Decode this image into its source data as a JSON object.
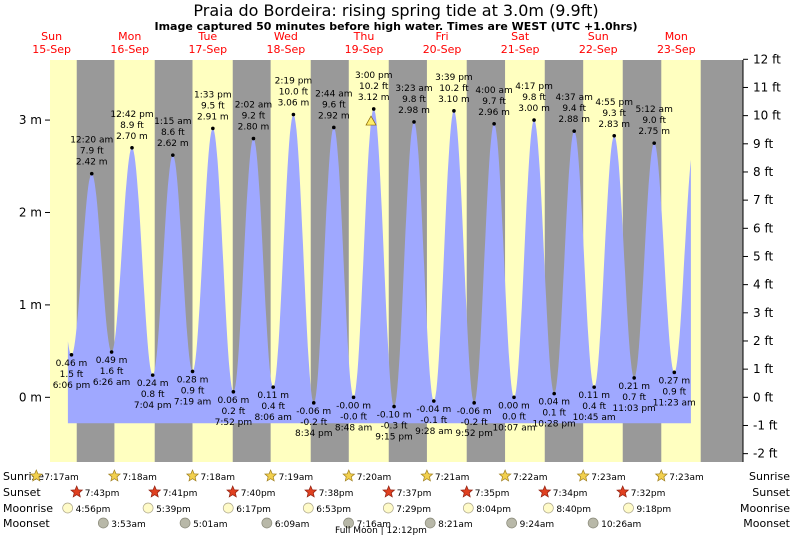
{
  "title": "Praia do Bordeira: rising  spring tide at 3.0m (9.9ft)",
  "subtitle": "Image captured 50 minutes before high water. Times are WEST (UTC +1.0hrs)",
  "footer": "Full Moon | 12:12pm",
  "colors": {
    "water": "#9fa8ff",
    "day": "#ffffc0",
    "night": "#999999",
    "day_label": "#ff0000"
  },
  "chart_data": {
    "type": "area",
    "title": "Praia do Bordeira: rising  spring tide at 3.0m (9.9ft)",
    "ylabel_left_unit": "m",
    "ylabel_right_unit": "ft",
    "ylim_m": [
      -0.7,
      3.65
    ],
    "left_ticks": [
      "0 m",
      "1 m",
      "2 m",
      "3 m"
    ],
    "left_tick_values": [
      0,
      1,
      2,
      3
    ],
    "right_ticks": [
      "-2 ft",
      "-1 ft",
      "0 ft",
      "1 ft",
      "2 ft",
      "3 ft",
      "4 ft",
      "5 ft",
      "6 ft",
      "7 ft",
      "8 ft",
      "9 ft",
      "10 ft",
      "11 ft",
      "12 ft"
    ],
    "right_tick_values": [
      -2,
      -1,
      0,
      1,
      2,
      3,
      4,
      5,
      6,
      7,
      8,
      9,
      10,
      11,
      12
    ],
    "day_labels": [
      {
        "day": "Sun",
        "date": "15-Sep"
      },
      {
        "day": "Mon",
        "date": "16-Sep"
      },
      {
        "day": "Tue",
        "date": "17-Sep"
      },
      {
        "day": "Wed",
        "date": "18-Sep"
      },
      {
        "day": "Thu",
        "date": "19-Sep"
      },
      {
        "day": "Fri",
        "date": "20-Sep"
      },
      {
        "day": "Sat",
        "date": "21-Sep"
      },
      {
        "day": "Sun",
        "date": "22-Sep"
      },
      {
        "day": "Mon",
        "date": "23-Sep"
      }
    ],
    "x_range_hours": [
      11.5,
      224.5
    ],
    "x_range_note_hours_from": "15-Sep 00:00",
    "daylight": [
      [
        "15-Sep 07:17",
        "15-Sep 19:43"
      ],
      [
        "16-Sep 07:18",
        "16-Sep 19:41"
      ],
      [
        "17-Sep 07:18",
        "17-Sep 19:40"
      ],
      [
        "18-Sep 07:19",
        "18-Sep 19:38"
      ],
      [
        "19-Sep 07:20",
        "19-Sep 19:37"
      ],
      [
        "20-Sep 07:21",
        "20-Sep 19:35"
      ],
      [
        "21-Sep 07:22",
        "21-Sep 19:34"
      ],
      [
        "22-Sep 07:23",
        "22-Sep 19:32"
      ],
      [
        "23-Sep 07:23",
        "23-Sep 19:30"
      ]
    ],
    "tides": [
      {
        "time": "6:06 pm",
        "t": "15-Sep 18:06",
        "m": 0.46,
        "ft": "1.5 ft",
        "m_label": "0.46 m",
        "type": "low"
      },
      {
        "time": "12:20 am",
        "t": "16-Sep 00:20",
        "m": 2.42,
        "ft": "7.9 ft",
        "m_label": "2.42 m",
        "type": "high"
      },
      {
        "time": "6:26 am",
        "t": "16-Sep 06:26",
        "m": 0.49,
        "ft": "1.6 ft",
        "m_label": "0.49 m",
        "type": "low"
      },
      {
        "time": "12:42 pm",
        "t": "16-Sep 12:42",
        "m": 2.7,
        "ft": "8.9 ft",
        "m_label": "2.70 m",
        "type": "high"
      },
      {
        "time": "7:04 pm",
        "t": "16-Sep 19:04",
        "m": 0.24,
        "ft": "0.8 ft",
        "m_label": "0.24 m",
        "type": "low"
      },
      {
        "time": "1:15 am",
        "t": "17-Sep 01:15",
        "m": 2.62,
        "ft": "8.6 ft",
        "m_label": "2.62 m",
        "type": "high"
      },
      {
        "time": "7:19 am",
        "t": "17-Sep 07:19",
        "m": 0.28,
        "ft": "0.9 ft",
        "m_label": "0.28 m",
        "type": "low"
      },
      {
        "time": "1:33 pm",
        "t": "17-Sep 13:33",
        "m": 2.91,
        "ft": "9.5 ft",
        "m_label": "2.91 m",
        "type": "high"
      },
      {
        "time": "7:52 pm",
        "t": "17-Sep 19:52",
        "m": 0.06,
        "ft": "0.2 ft",
        "m_label": "0.06 m",
        "type": "low"
      },
      {
        "time": "2:02 am",
        "t": "18-Sep 02:02",
        "m": 2.8,
        "ft": "9.2 ft",
        "m_label": "2.80 m",
        "type": "high"
      },
      {
        "time": "8:06 am",
        "t": "18-Sep 08:06",
        "m": 0.11,
        "ft": "0.4 ft",
        "m_label": "0.11 m",
        "type": "low"
      },
      {
        "time": "2:19 pm",
        "t": "18-Sep 14:19",
        "m": 3.06,
        "ft": "10.0 ft",
        "m_label": "3.06 m",
        "type": "high"
      },
      {
        "time": "8:34 pm",
        "t": "18-Sep 20:34",
        "m": -0.06,
        "ft": "-0.2 ft",
        "m_label": "-0.06 m",
        "type": "low"
      },
      {
        "time": "2:44 am",
        "t": "19-Sep 02:44",
        "m": 2.92,
        "ft": "9.6 ft",
        "m_label": "2.92 m",
        "type": "high"
      },
      {
        "time": "8:48 am",
        "t": "19-Sep 08:48",
        "m": -0.0,
        "ft": "-0.0 ft",
        "m_label": "-0.00 m",
        "type": "low"
      },
      {
        "time": "3:00 pm",
        "t": "19-Sep 15:00",
        "m": 3.12,
        "ft": "10.2 ft",
        "m_label": "3.12 m",
        "type": "high"
      },
      {
        "time": "9:15 pm",
        "t": "19-Sep 21:15",
        "m": -0.1,
        "ft": "-0.3 ft",
        "m_label": "-0.10 m",
        "type": "low"
      },
      {
        "time": "3:23 am",
        "t": "20-Sep 03:23",
        "m": 2.98,
        "ft": "9.8 ft",
        "m_label": "2.98 m",
        "type": "high"
      },
      {
        "time": "9:28 am",
        "t": "20-Sep 09:28",
        "m": -0.04,
        "ft": "-0.1 ft",
        "m_label": "-0.04 m",
        "type": "low"
      },
      {
        "time": "3:39 pm",
        "t": "20-Sep 15:39",
        "m": 3.1,
        "ft": "10.2 ft",
        "m_label": "3.10 m",
        "type": "high"
      },
      {
        "time": "9:52 pm",
        "t": "20-Sep 21:52",
        "m": -0.06,
        "ft": "-0.2 ft",
        "m_label": "-0.06 m",
        "type": "low"
      },
      {
        "time": "4:00 am",
        "t": "21-Sep 04:00",
        "m": 2.96,
        "ft": "9.7 ft",
        "m_label": "2.96 m",
        "type": "high"
      },
      {
        "time": "10:07 am",
        "t": "21-Sep 10:07",
        "m": 0.0,
        "ft": "0.0 ft",
        "m_label": "0.00 m",
        "type": "low"
      },
      {
        "time": "4:17 pm",
        "t": "21-Sep 16:17",
        "m": 3.0,
        "ft": "9.8 ft",
        "m_label": "3.00 m",
        "type": "high"
      },
      {
        "time": "10:28 pm",
        "t": "21-Sep 22:28",
        "m": 0.04,
        "ft": "0.1 ft",
        "m_label": "0.04 m",
        "type": "low"
      },
      {
        "time": "4:37 am",
        "t": "22-Sep 04:37",
        "m": 2.88,
        "ft": "9.4 ft",
        "m_label": "2.88 m",
        "type": "high"
      },
      {
        "time": "10:45 am",
        "t": "22-Sep 10:45",
        "m": 0.11,
        "ft": "0.4 ft",
        "m_label": "0.11 m",
        "type": "low"
      },
      {
        "time": "4:55 pm",
        "t": "22-Sep 16:55",
        "m": 2.83,
        "ft": "9.3 ft",
        "m_label": "2.83 m",
        "type": "high"
      },
      {
        "time": "11:03 pm",
        "t": "22-Sep 23:03",
        "m": 0.21,
        "ft": "0.7 ft",
        "m_label": "0.21 m",
        "type": "low"
      },
      {
        "time": "5:12 am",
        "t": "23-Sep 05:12",
        "m": 2.75,
        "ft": "9.0 ft",
        "m_label": "2.75 m",
        "type": "high"
      },
      {
        "time": "11:23 am",
        "t": "23-Sep 11:23",
        "m": 0.27,
        "ft": "0.9 ft",
        "m_label": "0.27 m",
        "type": "low"
      }
    ],
    "current_marker": {
      "t": "19-Sep 14:10",
      "m": 3.0
    }
  },
  "rows": {
    "labels": [
      "Sunrise",
      "Sunset",
      "Moonrise",
      "Moonset"
    ],
    "sunrise": [
      {
        "t": "15-Sep 07:17",
        "label": "7:17am"
      },
      {
        "t": "16-Sep 07:18",
        "label": "7:18am"
      },
      {
        "t": "17-Sep 07:18",
        "label": "7:18am"
      },
      {
        "t": "18-Sep 07:19",
        "label": "7:19am"
      },
      {
        "t": "19-Sep 07:20",
        "label": "7:20am"
      },
      {
        "t": "20-Sep 07:21",
        "label": "7:21am"
      },
      {
        "t": "21-Sep 07:22",
        "label": "7:22am"
      },
      {
        "t": "22-Sep 07:23",
        "label": "7:23am"
      },
      {
        "t": "23-Sep 07:23",
        "label": "7:23am"
      }
    ],
    "sunset": [
      {
        "t": "15-Sep 19:43",
        "label": "7:43pm"
      },
      {
        "t": "16-Sep 19:41",
        "label": "7:41pm"
      },
      {
        "t": "17-Sep 19:40",
        "label": "7:40pm"
      },
      {
        "t": "18-Sep 19:38",
        "label": "7:38pm"
      },
      {
        "t": "19-Sep 19:37",
        "label": "7:37pm"
      },
      {
        "t": "20-Sep 19:35",
        "label": "7:35pm"
      },
      {
        "t": "21-Sep 19:34",
        "label": "7:34pm"
      },
      {
        "t": "22-Sep 19:32",
        "label": "7:32pm"
      }
    ],
    "moonrise": [
      {
        "t": "15-Sep 16:56",
        "label": "4:56pm"
      },
      {
        "t": "16-Sep 17:39",
        "label": "5:39pm"
      },
      {
        "t": "17-Sep 18:17",
        "label": "6:17pm"
      },
      {
        "t": "18-Sep 18:53",
        "label": "6:53pm"
      },
      {
        "t": "19-Sep 19:29",
        "label": "7:29pm"
      },
      {
        "t": "20-Sep 20:04",
        "label": "8:04pm"
      },
      {
        "t": "21-Sep 20:40",
        "label": "8:40pm"
      },
      {
        "t": "22-Sep 21:18",
        "label": "9:18pm"
      }
    ],
    "moonset": [
      {
        "t": "16-Sep 03:53",
        "label": "3:53am"
      },
      {
        "t": "17-Sep 05:01",
        "label": "5:01am"
      },
      {
        "t": "18-Sep 06:09",
        "label": "6:09am"
      },
      {
        "t": "19-Sep 07:16",
        "label": "7:16am"
      },
      {
        "t": "20-Sep 08:21",
        "label": "8:21am"
      },
      {
        "t": "21-Sep 09:24",
        "label": "9:24am"
      },
      {
        "t": "22-Sep 10:26",
        "label": "10:26am"
      }
    ]
  }
}
